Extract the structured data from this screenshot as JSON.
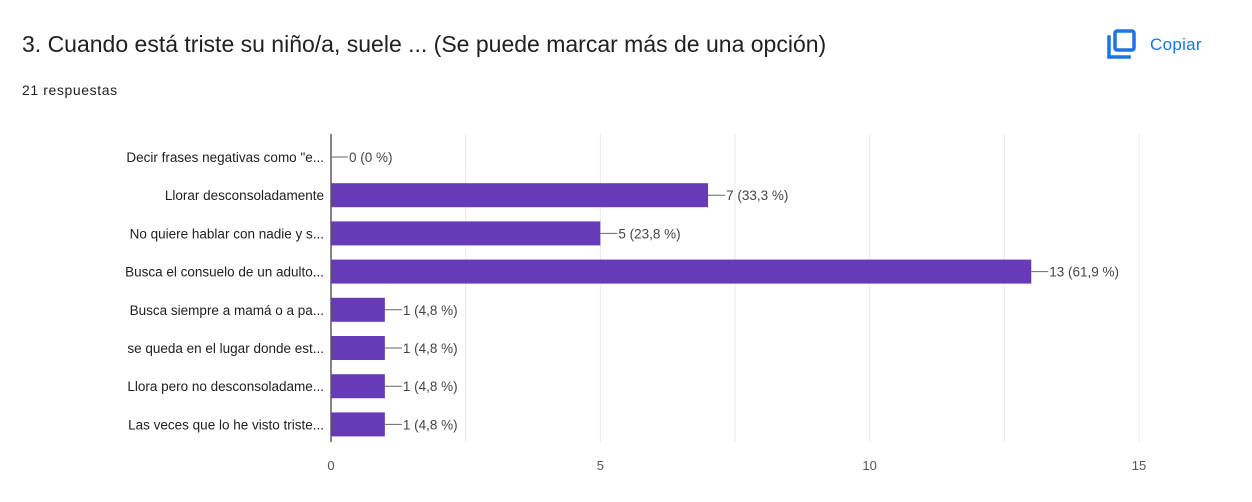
{
  "header": {
    "title": "3. Cuando está triste su niño/a, suele ... (Se puede marcar más de una opción)",
    "responses": "21 respuestas",
    "copy_label": "Copiar",
    "copy_icon": "copy-icon",
    "accent_color": "#1a73e8"
  },
  "chart_data": {
    "type": "bar",
    "orientation": "horizontal",
    "categories": [
      "Decir frases negativas como \"e...",
      "Llorar desconsoladamente",
      "No quiere hablar con nadie y s...",
      "Busca el consuelo de un adulto...",
      "Busca siempre a mamá o a pa...",
      "se queda en el lugar donde est...",
      "Llora pero no desconsoladame...",
      "Las veces que lo he visto triste..."
    ],
    "values": [
      0,
      7,
      5,
      13,
      1,
      1,
      1,
      1
    ],
    "data_labels": [
      "0 (0 %)",
      "7 (33,3 %)",
      "5 (23,8 %)",
      "13 (61,9 %)",
      "1 (4,8 %)",
      "1 (4,8 %)",
      "1 (4,8 %)",
      "1 (4,8 %)"
    ],
    "xlim": [
      0,
      15
    ],
    "xticks": [
      0,
      5,
      10,
      15
    ],
    "xticklabels": [
      "0",
      "5",
      "10",
      "15"
    ],
    "grid": true,
    "legend": "none",
    "bar_color": "#673ab7"
  }
}
